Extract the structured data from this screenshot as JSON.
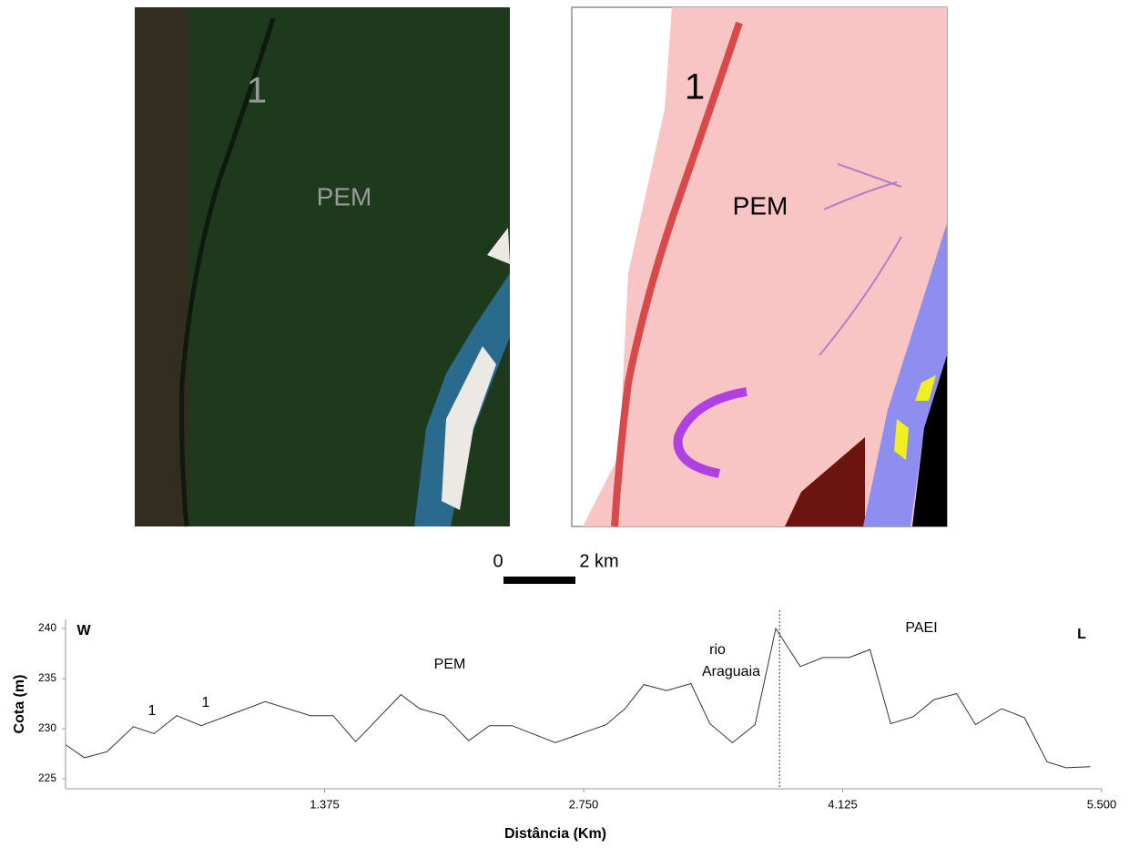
{
  "satellite_map": {
    "unit_label": "1",
    "area_label": "PEM"
  },
  "geomorphology_map": {
    "unit_label": "1",
    "area_label": "PEM"
  },
  "scale_bar": {
    "start": "0",
    "end": "2 km"
  },
  "chart_data": {
    "type": "line",
    "x_label": "Distância (Km)",
    "y_label": "Cota (m)",
    "x": [
      0,
      0.1,
      0.22,
      0.36,
      0.47,
      0.59,
      0.72,
      1.06,
      1.3,
      1.42,
      1.54,
      1.78,
      1.88,
      2.01,
      2.14,
      2.25,
      2.37,
      2.6,
      2.87,
      2.97,
      3.07,
      3.19,
      3.32,
      3.42,
      3.54,
      3.66,
      3.77,
      3.9,
      4.02,
      4.16,
      4.27,
      4.38,
      4.5,
      4.61,
      4.73,
      4.83,
      4.97,
      5.09,
      5.21,
      5.31,
      5.44
    ],
    "series": [
      {
        "color": "#333333",
        "values": [
          228.4,
          227.1,
          227.7,
          230.2,
          229.5,
          231.3,
          230.3,
          232.7,
          231.3,
          231.3,
          228.7,
          233.4,
          232.0,
          231.3,
          228.8,
          230.3,
          230.3,
          228.6,
          230.4,
          232.0,
          234.4,
          233.8,
          234.5,
          230.5,
          228.6,
          230.4,
          240.0,
          236.2,
          237.1,
          237.1,
          237.9,
          230.5,
          231.2,
          232.9,
          233.5,
          230.4,
          232.0,
          231.1,
          226.7,
          226.1,
          226.2
        ]
      }
    ],
    "xlim": [
      0,
      5.5
    ],
    "xticks": [
      1.375,
      {
        "value": 2.75,
        "label": "2.750"
      },
      4.125,
      {
        "value": 5.5,
        "label": "5.500"
      }
    ],
    "ylim": [
      224,
      241
    ],
    "yticks": [
      225,
      230,
      235,
      240
    ],
    "reference_x": 3.79,
    "annotations": [
      "W",
      "L",
      "PEM",
      "rio",
      "Araguaia",
      "PAEI",
      "1",
      "1"
    ]
  }
}
